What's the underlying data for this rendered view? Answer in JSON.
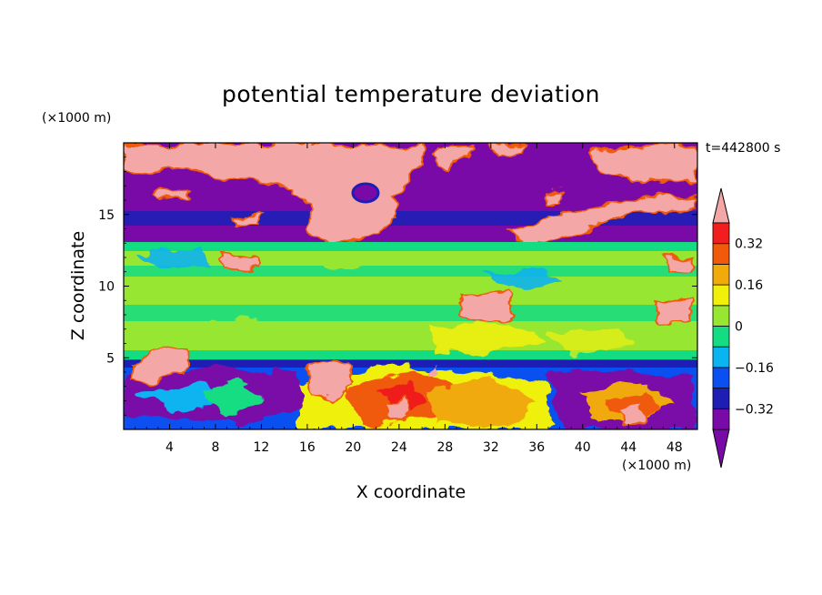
{
  "chart_data": {
    "type": "heatmap",
    "title": "potential temperature deviation",
    "xlabel": "X coordinate",
    "ylabel": "Z coordinate",
    "x_unit": "(×1000 m)",
    "y_unit": "(×1000 m)",
    "time_label": "t=442800 s",
    "xlim": [
      0,
      50
    ],
    "ylim": [
      0,
      20
    ],
    "x_ticks": [
      4,
      8,
      12,
      16,
      20,
      24,
      28,
      32,
      36,
      40,
      44,
      48
    ],
    "y_ticks": [
      5,
      10,
      15
    ],
    "colorbar": {
      "levels": [
        -0.4,
        -0.32,
        -0.24,
        -0.16,
        -0.08,
        0,
        0.08,
        0.16,
        0.24,
        0.32,
        0.4
      ],
      "labeled_ticks": [
        "-0.32",
        "-0.16",
        "0",
        "0.16",
        "0.32"
      ],
      "labeled_values": [
        -0.32,
        -0.16,
        0,
        0.16,
        0.32
      ],
      "colors": [
        "#7a0aa8",
        "#1e1eb4",
        "#0a50f0",
        "#0ab4f0",
        "#14dc82",
        "#96e632",
        "#f0f00a",
        "#f0aa0a",
        "#f05a0a",
        "#f01e1e"
      ],
      "below_color": "#7a0aa8",
      "above_color": "#f4a7a7"
    },
    "layers": [
      {
        "z_range": [
          0,
          5
        ],
        "dominant": "mixed turbulent boundary layer, values -0.4 to 0.4"
      },
      {
        "z_range": [
          5,
          13
        ],
        "dominant": "near zero, -0.08 to 0.08"
      },
      {
        "z_range": [
          13,
          20
        ],
        "dominant": "extremes, below -0.4 and above 0.4"
      }
    ]
  }
}
